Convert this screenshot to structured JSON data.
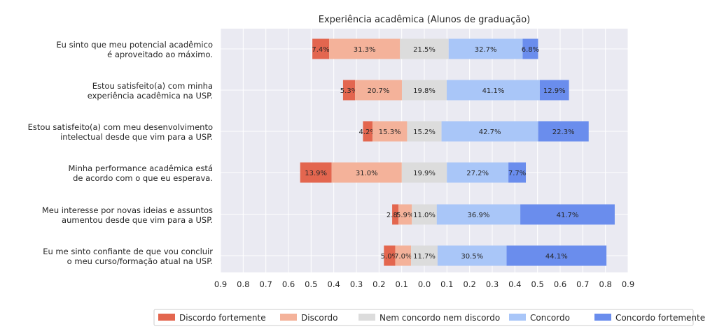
{
  "chart_data": {
    "type": "bar",
    "orientation": "horizontal-diverging-stacked",
    "title": "Experiência acadêmica (Alunos de graduação)",
    "xlim": [
      -0.9,
      0.9
    ],
    "xticks": [
      -0.9,
      -0.8,
      -0.7,
      -0.6,
      -0.5,
      -0.4,
      -0.3,
      -0.2,
      -0.1,
      0.0,
      0.1,
      0.2,
      0.3,
      0.4,
      0.5,
      0.6,
      0.7,
      0.8,
      0.9
    ],
    "xtick_labels": [
      "0.9",
      "0.8",
      "0.7",
      "0.6",
      "0.5",
      "0.4",
      "0.3",
      "0.2",
      "0.1",
      "0.0",
      "0.1",
      "0.2",
      "0.3",
      "0.4",
      "0.5",
      "0.6",
      "0.7",
      "0.8",
      "0.9"
    ],
    "grid": true,
    "legend_position": "bottom",
    "categories": [
      [
        "Eu sinto que meu potencial acadêmico",
        "é aproveitado ao máximo."
      ],
      [
        "Estou satisfeito(a) com minha",
        "experiência acadêmica na USP."
      ],
      [
        "Estou satisfeito(a) com meu desenvolvimento",
        "intelectual desde que vim para a USP."
      ],
      [
        "Minha performance acadêmica está",
        "de acordo com o que eu esperava."
      ],
      [
        "Meu interesse por novas ideias e assuntos",
        "aumentou desde que vim para a USP."
      ],
      [
        "Eu me sinto confiante de que vou concluir",
        "o meu curso/formação atual na USP."
      ]
    ],
    "series": [
      {
        "name": "Discordo fortemente",
        "color": "#e3664f",
        "values": [
          0.074,
          0.053,
          0.042,
          0.139,
          0.028,
          0.05
        ],
        "labels": [
          "7.4%",
          "5.3%",
          "4.2%",
          "13.9%",
          "2.8%",
          "5.0%"
        ]
      },
      {
        "name": "Discordo",
        "color": "#f4b29a",
        "values": [
          0.313,
          0.207,
          0.153,
          0.31,
          0.059,
          0.07
        ],
        "labels": [
          "31.3%",
          "20.7%",
          "15.3%",
          "31.0%",
          "5.9%",
          "7.0%"
        ]
      },
      {
        "name": "Nem concordo nem discordo",
        "color": "#dcdcdc",
        "values": [
          0.215,
          0.198,
          0.152,
          0.199,
          0.11,
          0.117
        ],
        "labels": [
          "21.5%",
          "19.8%",
          "15.2%",
          "19.9%",
          "11.0%",
          "11.7%"
        ]
      },
      {
        "name": "Concordo",
        "color": "#a9c6f8",
        "values": [
          0.327,
          0.411,
          0.427,
          0.272,
          0.369,
          0.305
        ],
        "labels": [
          "32.7%",
          "41.1%",
          "42.7%",
          "27.2%",
          "36.9%",
          "30.5%"
        ]
      },
      {
        "name": "Concordo fortemente",
        "color": "#6a8ded",
        "values": [
          0.068,
          0.129,
          0.223,
          0.077,
          0.417,
          0.441
        ],
        "labels": [
          "6.8%",
          "12.9%",
          "22.3%",
          "7.7%",
          "41.7%",
          "44.1%"
        ]
      }
    ]
  }
}
